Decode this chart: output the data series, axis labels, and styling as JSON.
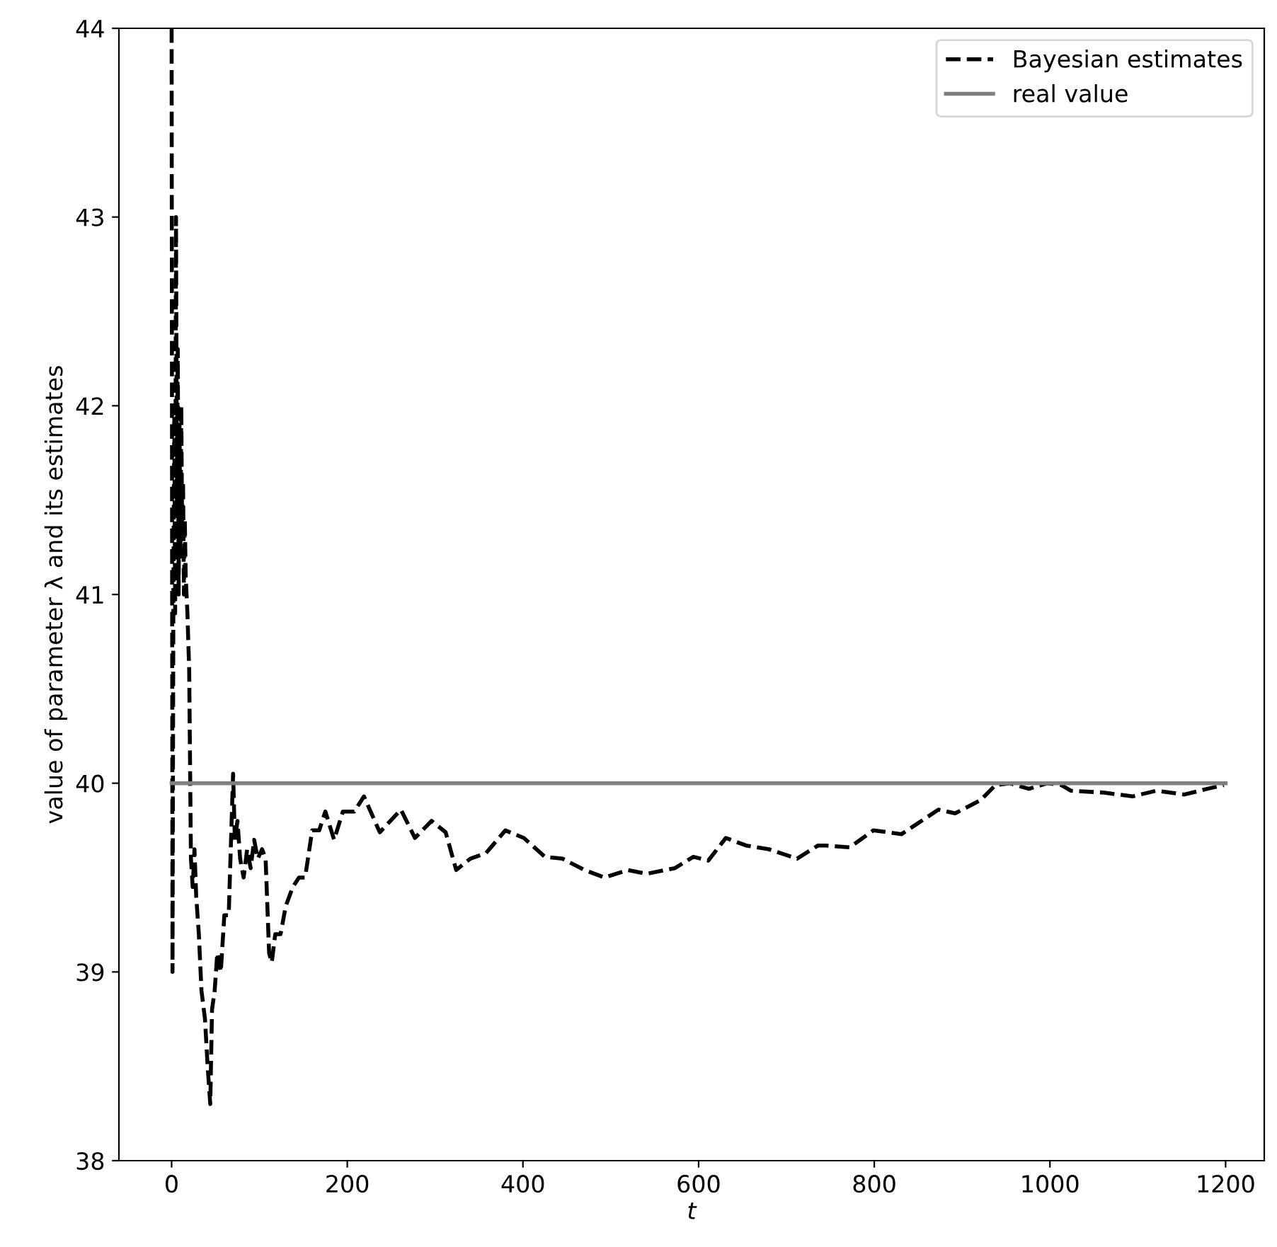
{
  "chart_data": {
    "type": "line",
    "xlabel": "t",
    "ylabel": "value of parameter λ and its estimates",
    "xlim": [
      -60,
      1244
    ],
    "ylim": [
      38,
      44
    ],
    "xticks": [
      0,
      200,
      400,
      600,
      800,
      1000,
      1200
    ],
    "yticks": [
      38,
      39,
      40,
      41,
      42,
      43,
      44
    ],
    "grid": false,
    "legend": "top right",
    "series": [
      {
        "name": "Bayesian estimates",
        "color": "#000000",
        "line_style": "dashed",
        "x": [
          0,
          1,
          2,
          3,
          4,
          5,
          6,
          7,
          8,
          9,
          10,
          11,
          12,
          13,
          14,
          15,
          16,
          18,
          20,
          22,
          24,
          26,
          28,
          31,
          34,
          38,
          41,
          44,
          46,
          49,
          52,
          56,
          60,
          65,
          70,
          72,
          75,
          78,
          82,
          86,
          90,
          94,
          98,
          103,
          107,
          111,
          114,
          118,
          124,
          130,
          138,
          145,
          152,
          160,
          168,
          175,
          185,
          195,
          208,
          219,
          237,
          261,
          277,
          296,
          312,
          324,
          340,
          358,
          380,
          401,
          425,
          445,
          470,
          493,
          519,
          541,
          573,
          594,
          611,
          631,
          654,
          680,
          712,
          736,
          744,
          772,
          799,
          831,
          873,
          892,
          921,
          938,
          954,
          976,
          997,
          1013,
          1024,
          1062,
          1094,
          1121,
          1153,
          1179,
          1198
        ],
        "values": [
          44,
          39.0,
          41.0,
          42.0,
          40.9,
          43.0,
          41.5,
          42.3,
          41.0,
          41.9,
          41.2,
          42.0,
          41.3,
          41.6,
          41.0,
          41.4,
          41.1,
          40.9,
          40.6,
          39.6,
          39.45,
          39.65,
          39.4,
          39.2,
          38.9,
          38.75,
          38.5,
          38.3,
          38.8,
          38.9,
          39.1,
          39.0,
          39.3,
          39.3,
          40.05,
          39.7,
          39.8,
          39.6,
          39.5,
          39.65,
          39.55,
          39.7,
          39.6,
          39.65,
          39.6,
          39.1,
          39.05,
          39.2,
          39.2,
          39.35,
          39.45,
          39.5,
          39.5,
          39.75,
          39.75,
          39.85,
          39.7,
          39.85,
          39.85,
          39.93,
          39.74,
          39.86,
          39.71,
          39.8,
          39.74,
          39.54,
          39.6,
          39.63,
          39.75,
          39.71,
          39.61,
          39.6,
          39.54,
          39.5,
          39.54,
          39.52,
          39.55,
          39.61,
          39.59,
          39.71,
          39.67,
          39.65,
          39.6,
          39.67,
          39.67,
          39.66,
          39.75,
          39.73,
          39.86,
          39.84,
          39.91,
          39.99,
          40.0,
          39.97,
          40.0,
          39.99,
          39.96,
          39.95,
          39.93,
          39.96,
          39.94,
          39.97,
          39.99
        ]
      },
      {
        "name": "real value",
        "color": "#808080",
        "line_style": "solid",
        "x": [
          0,
          1200
        ],
        "values": [
          40,
          40
        ]
      }
    ]
  }
}
